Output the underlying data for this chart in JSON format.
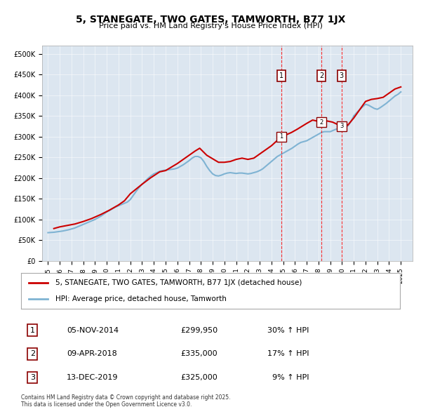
{
  "title": "5, STANEGATE, TWO GATES, TAMWORTH, B77 1JX",
  "subtitle": "Price paid vs. HM Land Registry's House Price Index (HPI)",
  "background_color": "#dce6f0",
  "plot_background": "#dce6f0",
  "hpi_color": "#7fb3d3",
  "price_color": "#cc0000",
  "ylim": [
    0,
    520000
  ],
  "yticks": [
    0,
    50000,
    100000,
    150000,
    200000,
    250000,
    300000,
    350000,
    400000,
    450000,
    500000
  ],
  "ytick_labels": [
    "£0",
    "£50K",
    "£100K",
    "£150K",
    "£200K",
    "£250K",
    "£300K",
    "£350K",
    "£400K",
    "£450K",
    "£500K"
  ],
  "xlim_start": 1994.5,
  "xlim_end": 2026,
  "xticks": [
    1995,
    1996,
    1997,
    1998,
    1999,
    2000,
    2001,
    2002,
    2003,
    2004,
    2005,
    2006,
    2007,
    2008,
    2009,
    2010,
    2011,
    2012,
    2013,
    2014,
    2015,
    2016,
    2017,
    2018,
    2019,
    2020,
    2021,
    2022,
    2023,
    2024,
    2025
  ],
  "sale_dates": [
    2014.85,
    2018.27,
    2019.95
  ],
  "sale_prices": [
    299950,
    335000,
    325000
  ],
  "sale_labels": [
    "1",
    "2",
    "3"
  ],
  "legend_entries": [
    "5, STANEGATE, TWO GATES, TAMWORTH, B77 1JX (detached house)",
    "HPI: Average price, detached house, Tamworth"
  ],
  "table_rows": [
    {
      "num": "1",
      "date": "05-NOV-2014",
      "price": "£299,950",
      "change": "30% ↑ HPI"
    },
    {
      "num": "2",
      "date": "09-APR-2018",
      "price": "£335,000",
      "change": "17% ↑ HPI"
    },
    {
      "num": "3",
      "date": "13-DEC-2019",
      "price": "£325,000",
      "change": "  9% ↑ HPI"
    }
  ],
  "footer": "Contains HM Land Registry data © Crown copyright and database right 2025.\nThis data is licensed under the Open Government Licence v3.0.",
  "hpi_data_x": [
    1995.0,
    1995.25,
    1995.5,
    1995.75,
    1996.0,
    1996.25,
    1996.5,
    1996.75,
    1997.0,
    1997.25,
    1997.5,
    1997.75,
    1998.0,
    1998.25,
    1998.5,
    1998.75,
    1999.0,
    1999.25,
    1999.5,
    1999.75,
    2000.0,
    2000.25,
    2000.5,
    2000.75,
    2001.0,
    2001.25,
    2001.5,
    2001.75,
    2002.0,
    2002.25,
    2002.5,
    2002.75,
    2003.0,
    2003.25,
    2003.5,
    2003.75,
    2004.0,
    2004.25,
    2004.5,
    2004.75,
    2005.0,
    2005.25,
    2005.5,
    2005.75,
    2006.0,
    2006.25,
    2006.5,
    2006.75,
    2007.0,
    2007.25,
    2007.5,
    2007.75,
    2008.0,
    2008.25,
    2008.5,
    2008.75,
    2009.0,
    2009.25,
    2009.5,
    2009.75,
    2010.0,
    2010.25,
    2010.5,
    2010.75,
    2011.0,
    2011.25,
    2011.5,
    2011.75,
    2012.0,
    2012.25,
    2012.5,
    2012.75,
    2013.0,
    2013.25,
    2013.5,
    2013.75,
    2014.0,
    2014.25,
    2014.5,
    2014.75,
    2015.0,
    2015.25,
    2015.5,
    2015.75,
    2016.0,
    2016.25,
    2016.5,
    2016.75,
    2017.0,
    2017.25,
    2017.5,
    2017.75,
    2018.0,
    2018.25,
    2018.5,
    2018.75,
    2019.0,
    2019.25,
    2019.5,
    2019.75,
    2020.0,
    2020.25,
    2020.5,
    2020.75,
    2021.0,
    2021.25,
    2021.5,
    2021.75,
    2022.0,
    2022.25,
    2022.5,
    2022.75,
    2023.0,
    2023.25,
    2023.5,
    2023.75,
    2024.0,
    2024.25,
    2024.5,
    2024.75,
    2025.0
  ],
  "hpi_data_y": [
    68000,
    68500,
    69000,
    70000,
    71000,
    72000,
    73500,
    75000,
    77000,
    79000,
    82000,
    85000,
    88000,
    91000,
    94000,
    97000,
    100000,
    104000,
    108000,
    113000,
    118000,
    122000,
    126000,
    130000,
    133000,
    136000,
    139000,
    142000,
    148000,
    158000,
    168000,
    177000,
    185000,
    192000,
    199000,
    205000,
    210000,
    213000,
    216000,
    218000,
    219000,
    220000,
    221000,
    222000,
    224000,
    228000,
    232000,
    237000,
    242000,
    248000,
    252000,
    252000,
    249000,
    240000,
    228000,
    218000,
    210000,
    206000,
    205000,
    207000,
    210000,
    212000,
    213000,
    212000,
    211000,
    212000,
    212000,
    211000,
    210000,
    211000,
    213000,
    215000,
    218000,
    222000,
    228000,
    234000,
    240000,
    246000,
    252000,
    256000,
    260000,
    264000,
    268000,
    272000,
    277000,
    282000,
    286000,
    288000,
    290000,
    294000,
    298000,
    302000,
    306000,
    310000,
    312000,
    312000,
    312000,
    315000,
    318000,
    320000,
    321000,
    322000,
    326000,
    336000,
    350000,
    358000,
    365000,
    372000,
    378000,
    376000,
    372000,
    368000,
    366000,
    370000,
    375000,
    380000,
    386000,
    392000,
    398000,
    402000,
    408000
  ],
  "price_data_x": [
    1995.5,
    1996.0,
    1997.3,
    1998.0,
    1998.7,
    1999.5,
    2000.2,
    2001.0,
    2001.5,
    2002.0,
    2003.0,
    2003.7,
    2004.5,
    2005.0,
    2006.0,
    2007.0,
    2007.5,
    2007.9,
    2008.5,
    2009.5,
    2010.0,
    2010.5,
    2011.0,
    2011.5,
    2012.0,
    2012.5,
    2013.0,
    2013.5,
    2014.0,
    2014.85,
    2015.3,
    2015.7,
    2016.2,
    2016.6,
    2017.0,
    2017.5,
    2018.27,
    2018.7,
    2019.2,
    2019.95,
    2020.5,
    2021.0,
    2021.5,
    2022.0,
    2022.5,
    2023.0,
    2023.5,
    2024.0,
    2024.5,
    2025.0
  ],
  "price_data_y": [
    78000,
    82000,
    89000,
    95000,
    102000,
    112000,
    122000,
    135000,
    145000,
    162000,
    185000,
    200000,
    215000,
    218000,
    235000,
    255000,
    265000,
    272000,
    255000,
    238000,
    238000,
    240000,
    245000,
    248000,
    245000,
    248000,
    258000,
    268000,
    278000,
    299950,
    305000,
    310000,
    318000,
    325000,
    332000,
    340000,
    335000,
    338000,
    335000,
    325000,
    328000,
    345000,
    365000,
    385000,
    390000,
    392000,
    395000,
    405000,
    415000,
    420000
  ]
}
